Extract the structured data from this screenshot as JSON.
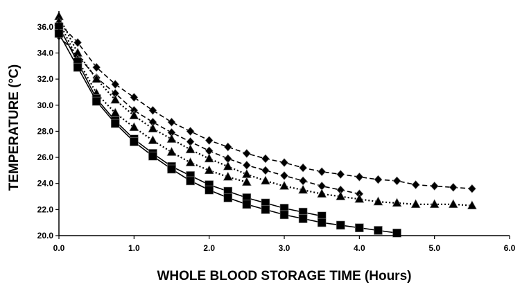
{
  "chart_data": {
    "type": "line",
    "title": "",
    "xlabel": "WHOLE BLOOD STORAGE TIME (Hours)",
    "ylabel": "TEMPERATURE (°C)",
    "xlim": [
      0,
      6
    ],
    "ylim": [
      20,
      37
    ],
    "x_ticks": [
      "0.0",
      "1.0",
      "2.0",
      "3.0",
      "4.0",
      "5.0",
      "6.0"
    ],
    "y_ticks": [
      "20.0",
      "22.0",
      "24.0",
      "26.0",
      "28.0",
      "30.0",
      "32.0",
      "34.0",
      "36.0"
    ],
    "grid": false,
    "legend": "none",
    "series": [
      {
        "marker": "diamond",
        "line": "dashed",
        "x": [
          0,
          0.25,
          0.5,
          0.75,
          1.0,
          1.25,
          1.5,
          1.75,
          2.0,
          2.25,
          2.5,
          2.75,
          3.0,
          3.25,
          3.5,
          3.75,
          4.0,
          4.25,
          4.5,
          4.75,
          5.0,
          5.25,
          5.5
        ],
        "values": [
          36.3,
          34.8,
          32.9,
          31.6,
          30.6,
          29.6,
          28.7,
          28.0,
          27.3,
          26.8,
          26.3,
          25.9,
          25.6,
          25.2,
          24.9,
          24.7,
          24.5,
          24.3,
          24.2,
          23.9,
          23.8,
          23.7,
          23.6
        ]
      },
      {
        "marker": "diamond",
        "line": "dashed",
        "x": [
          0,
          0.25,
          0.5,
          0.75,
          1.0,
          1.25,
          1.5,
          1.75,
          2.0,
          2.25,
          2.5,
          2.75,
          3.0,
          3.25,
          3.5,
          3.75,
          4.0
        ],
        "values": [
          35.3,
          33.8,
          32.1,
          30.9,
          29.6,
          28.7,
          27.9,
          27.2,
          26.5,
          25.9,
          25.4,
          25.0,
          24.6,
          24.2,
          23.8,
          23.5,
          23.2
        ]
      },
      {
        "marker": "triangle",
        "line": "dotted",
        "x": [
          0,
          0.25,
          0.5,
          0.75,
          1.0,
          1.25,
          1.5,
          1.75,
          2.0,
          2.25,
          2.5,
          2.75,
          3.0,
          3.25,
          3.5,
          3.75,
          4.0,
          4.25,
          4.5,
          4.75,
          5.0,
          5.25,
          5.5
        ],
        "values": [
          36.8,
          34.0,
          32.0,
          30.4,
          29.2,
          28.2,
          27.4,
          26.6,
          25.9,
          25.3,
          24.7,
          24.2,
          23.8,
          23.5,
          23.2,
          23.0,
          22.8,
          22.6,
          22.5,
          22.4,
          22.4,
          22.4,
          22.3
        ]
      },
      {
        "marker": "triangle",
        "line": "dotted",
        "x": [
          0,
          0.25,
          0.5,
          0.75,
          1.0,
          1.25,
          1.5,
          1.75,
          2.0,
          2.25,
          2.5
        ],
        "values": [
          36.4,
          33.5,
          30.9,
          29.4,
          28.3,
          27.3,
          26.4,
          25.6,
          25.0,
          24.5,
          24.1
        ]
      },
      {
        "marker": "square",
        "line": "solid",
        "x": [
          0,
          0.25,
          0.5,
          0.75,
          1.0,
          1.25,
          1.5,
          1.75,
          2.0,
          2.25,
          2.5,
          2.75,
          3.0,
          3.25,
          3.5
        ],
        "values": [
          36.0,
          33.3,
          30.5,
          28.8,
          27.4,
          26.3,
          25.3,
          24.6,
          23.9,
          23.4,
          22.9,
          22.5,
          22.1,
          21.8,
          21.5
        ]
      },
      {
        "marker": "square",
        "line": "solid",
        "x": [
          0,
          0.25,
          0.5,
          0.75,
          1.0,
          1.25,
          1.5,
          1.75,
          2.0,
          2.25,
          2.5,
          2.75,
          3.0,
          3.25,
          3.5,
          3.75,
          4.0,
          4.25,
          4.5
        ],
        "values": [
          35.5,
          32.9,
          30.3,
          28.6,
          27.2,
          26.1,
          25.1,
          24.2,
          23.5,
          22.9,
          22.4,
          22.0,
          21.6,
          21.3,
          21.0,
          20.8,
          20.6,
          20.4,
          20.2
        ]
      }
    ]
  }
}
